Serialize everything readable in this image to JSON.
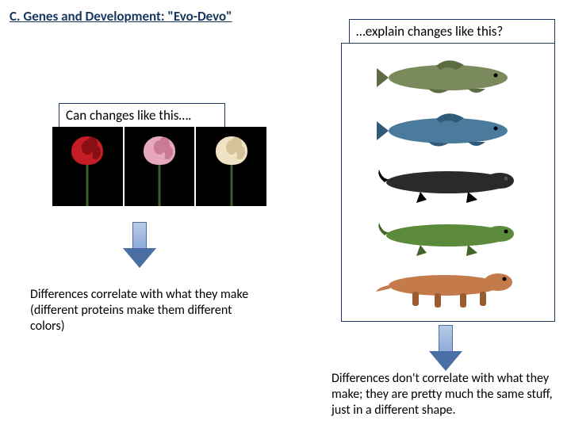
{
  "title": "C. Genes and Development: \"Evo-Devo\"",
  "left": {
    "header": "Can changes like this….",
    "caption": "Differences correlate with what they make (different proteins make them different colors)",
    "flowers": [
      {
        "name": "red-carnation",
        "color": "#c41e24",
        "shade": "#8a0f14"
      },
      {
        "name": "pink-carnation",
        "color": "#e8a8bc",
        "shade": "#c97a96"
      },
      {
        "name": "cream-carnation",
        "color": "#f0e2c4",
        "shade": "#d4c29a"
      }
    ],
    "panel_bg": "#000000",
    "stem_color": "#3a5f2a"
  },
  "right": {
    "header": "…explain changes like this?",
    "caption": "Differences don't correlate with what they make; they are pretty much the same stuff, just in a different shape.",
    "animals": [
      {
        "name": "fish-1",
        "body": "#7a8a5c",
        "fin": "#5c6b42"
      },
      {
        "name": "fish-2",
        "body": "#4a7a9c",
        "fin": "#2f5a78"
      },
      {
        "name": "amphibian-dark",
        "body": "#2a2a2a",
        "fin": "#000000"
      },
      {
        "name": "amphibian-green",
        "body": "#5a8a3a",
        "fin": "#3f6628"
      },
      {
        "name": "tetrapod-orange",
        "body": "#c47a4a",
        "fin": "#9a5a32"
      }
    ]
  },
  "arrow": {
    "fill_top": "#b8cce4",
    "fill_bottom": "#8faadc",
    "border": "#4a6fa5"
  },
  "colors": {
    "title": "#17365d",
    "panel_border": "#1f3864",
    "bg": "#ffffff"
  }
}
